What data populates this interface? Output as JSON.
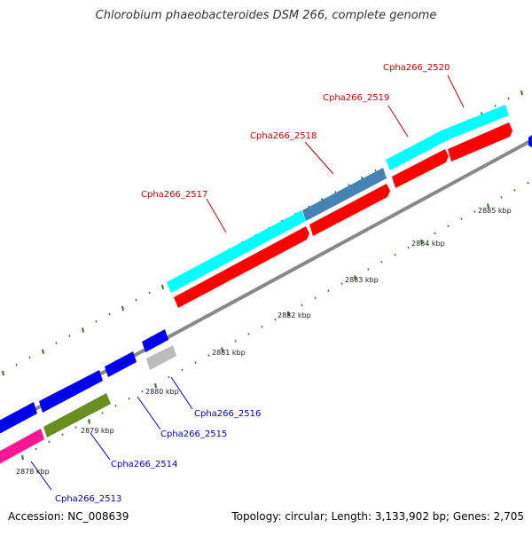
{
  "title": "Chlorobium phaeobacteroides DSM 266, complete genome",
  "footer": {
    "accession": "Accession: NC_008639",
    "topology": "Topology: circular; Length: 3,133,902 bp; Genes: 2,705"
  },
  "colors": {
    "backbone": "#888888",
    "tick": "#2d7a1e",
    "forward_label": "#cc0000",
    "reverse_label": "#0000cc",
    "cds_red": "#ff0000",
    "cog_cyan": "#00ffff",
    "cog_steelblue": "#4682b4",
    "rev_blue": "#0000ee",
    "rev_gray": "#bbbbbb",
    "rev_olive": "#6b8e23",
    "rev_pink": "#ff1493"
  },
  "scale_labels": [
    "2878 kbp",
    "2879 kbp",
    "2880 kbp",
    "2881 kbp",
    "2882 kbp",
    "2883 kbp",
    "2884 kbp",
    "2885 kbp"
  ],
  "forward_genes": [
    {
      "label": "Cpha266_2517"
    },
    {
      "label": "Cpha266_2518"
    },
    {
      "label": "Cpha266_2519"
    },
    {
      "label": "Cpha266_2520"
    }
  ],
  "reverse_genes": [
    {
      "label": "Cpha266_2513"
    },
    {
      "label": "Cpha266_2514"
    },
    {
      "label": "Cpha266_2515"
    },
    {
      "label": "Cpha266_2516"
    }
  ]
}
